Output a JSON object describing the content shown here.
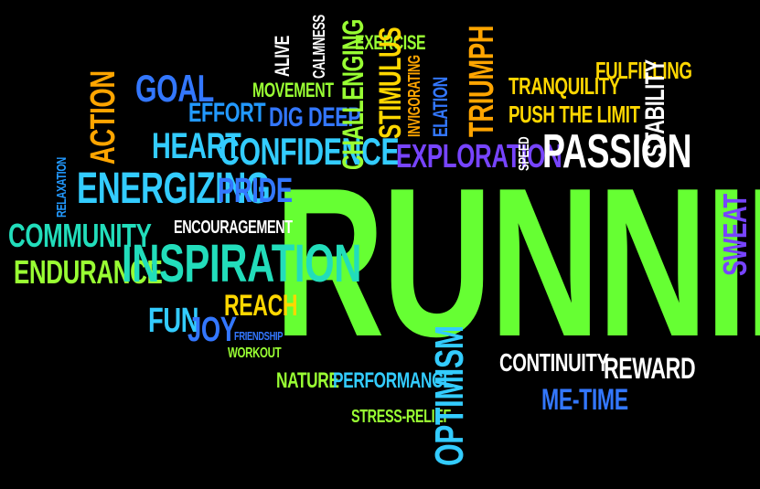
{
  "words": {
    "running": "RUNNING",
    "passion": "PASSION",
    "inspiration": "INSPIRATION",
    "energizing": "ENERGIZING",
    "confidence": "CONFIDENCE",
    "heart": "HEART",
    "goal": "GOAL",
    "effort": "EFFORT",
    "action": "ACTION",
    "relaxation": "RELAXATION",
    "community": "COMMUNITY",
    "endurance": "ENDURANCE",
    "pride": "PRIDE",
    "encouragement": "ENCOURAGEMENT",
    "reach": "REACH",
    "fun": "FUN",
    "joy": "JOY",
    "friendship": "FRIENDSHIP",
    "workout": "WORKOUT",
    "nature": "NATURE",
    "performance": "PERFORMANCE",
    "stress_relief": "STRESS-RELIEF",
    "optimism": "OPTIMISM",
    "continuity": "CONTINUITY",
    "reward": "REWARD",
    "me_time": "ME-TIME",
    "sweat": "SWEAT",
    "stability": "STABILITY",
    "fulfilling": "FULFILLING",
    "tranquility": "TRANQUILITY",
    "push_the_limit": "PUSH THE LIMIT",
    "triumph": "TRIUMPH",
    "elation": "ELATION",
    "invigorating": "INVIGORATING",
    "stimulus": "STIMULUS",
    "exercise": "EXERCISE",
    "calmness": "CALMNESS",
    "alive": "ALIVE",
    "movement": "MOVEMENT",
    "dig_deep": "DIG DEEP",
    "challenging": "CHALLENGING",
    "exploration": "EXPLORATION",
    "speed": "SPEED"
  },
  "colors": {
    "green": "#66ff33",
    "yellow": "#ffd700",
    "orange": "#ffa500",
    "white": "#ffffff",
    "cyan": "#33ccff",
    "teal": "#22ddbb",
    "blue": "#3377ff",
    "purple": "#7744ff",
    "lime": "#99ff33"
  }
}
